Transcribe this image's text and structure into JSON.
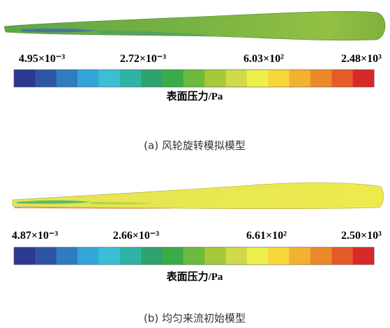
{
  "panels": [
    {
      "colorbar": {
        "labels": [
          "4.95×10⁻³",
          "2.72×10⁻³",
          "6.03×10²",
          "2.48×10³"
        ],
        "unit": "表面压力/Pa",
        "colors": [
          "#2b3990",
          "#2e55a5",
          "#2f7cc0",
          "#35a4d8",
          "#3bbfd6",
          "#2fb3a6",
          "#2ea36e",
          "#3bab4a",
          "#6cbb3c",
          "#a4c93a",
          "#cfd94a",
          "#eef04c",
          "#f5d73a",
          "#f2b132",
          "#ea8a2a",
          "#e55c28",
          "#d9282a"
        ]
      },
      "caption": "(a) 风轮旋转模拟模型"
    },
    {
      "colorbar": {
        "labels": [
          "4.87×10⁻³",
          "2.66×10⁻³",
          "6.61×10²",
          "2.50×10³"
        ],
        "unit": "表面压力/Pa",
        "colors": [
          "#2b3990",
          "#2e55a5",
          "#2f7cc0",
          "#35a4d8",
          "#3bbfd6",
          "#2fb3a6",
          "#2ea36e",
          "#3bab4a",
          "#6cbb3c",
          "#a4c93a",
          "#cfd94a",
          "#eef04c",
          "#f5d73a",
          "#f2b132",
          "#ea8a2a",
          "#e55c28",
          "#d9282a"
        ]
      },
      "caption": "(b) 均匀来流初始模型"
    }
  ]
}
